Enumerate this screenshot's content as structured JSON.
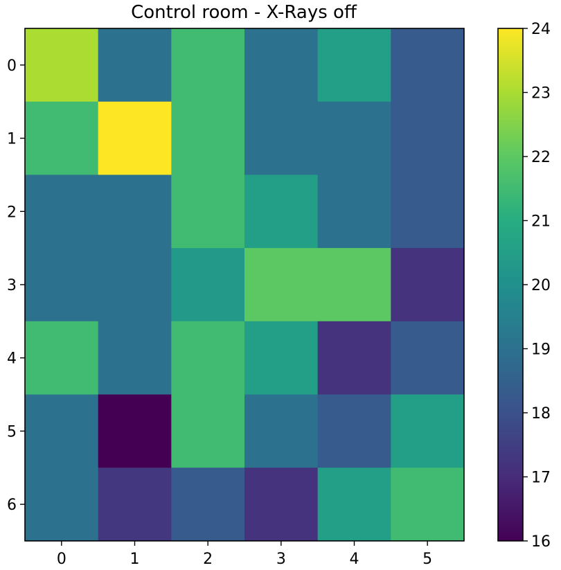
{
  "chart_data": {
    "type": "heatmap",
    "title": "Control room - X-Rays off",
    "x": [
      0,
      1,
      2,
      3,
      4,
      5
    ],
    "y": [
      0,
      1,
      2,
      3,
      4,
      5,
      6
    ],
    "values": [
      [
        23,
        19,
        21.5,
        19,
        20.5,
        18.3
      ],
      [
        21.5,
        24,
        21.5,
        19,
        19,
        18.3
      ],
      [
        19,
        19,
        21.5,
        20.5,
        19,
        18.3
      ],
      [
        19,
        19,
        20.3,
        22,
        22,
        17.2
      ],
      [
        21.5,
        19,
        21.5,
        20.5,
        17.2,
        18.3
      ],
      [
        19,
        16,
        21.5,
        19,
        18.3,
        20.5
      ],
      [
        19,
        17.3,
        18.3,
        17.2,
        20.5,
        21.5
      ]
    ],
    "colorbar": {
      "range": [
        16,
        24
      ],
      "ticks": [
        16,
        17,
        18,
        19,
        20,
        21,
        22,
        23,
        24
      ],
      "colormap": "viridis"
    },
    "xlabel": "",
    "ylabel": ""
  }
}
